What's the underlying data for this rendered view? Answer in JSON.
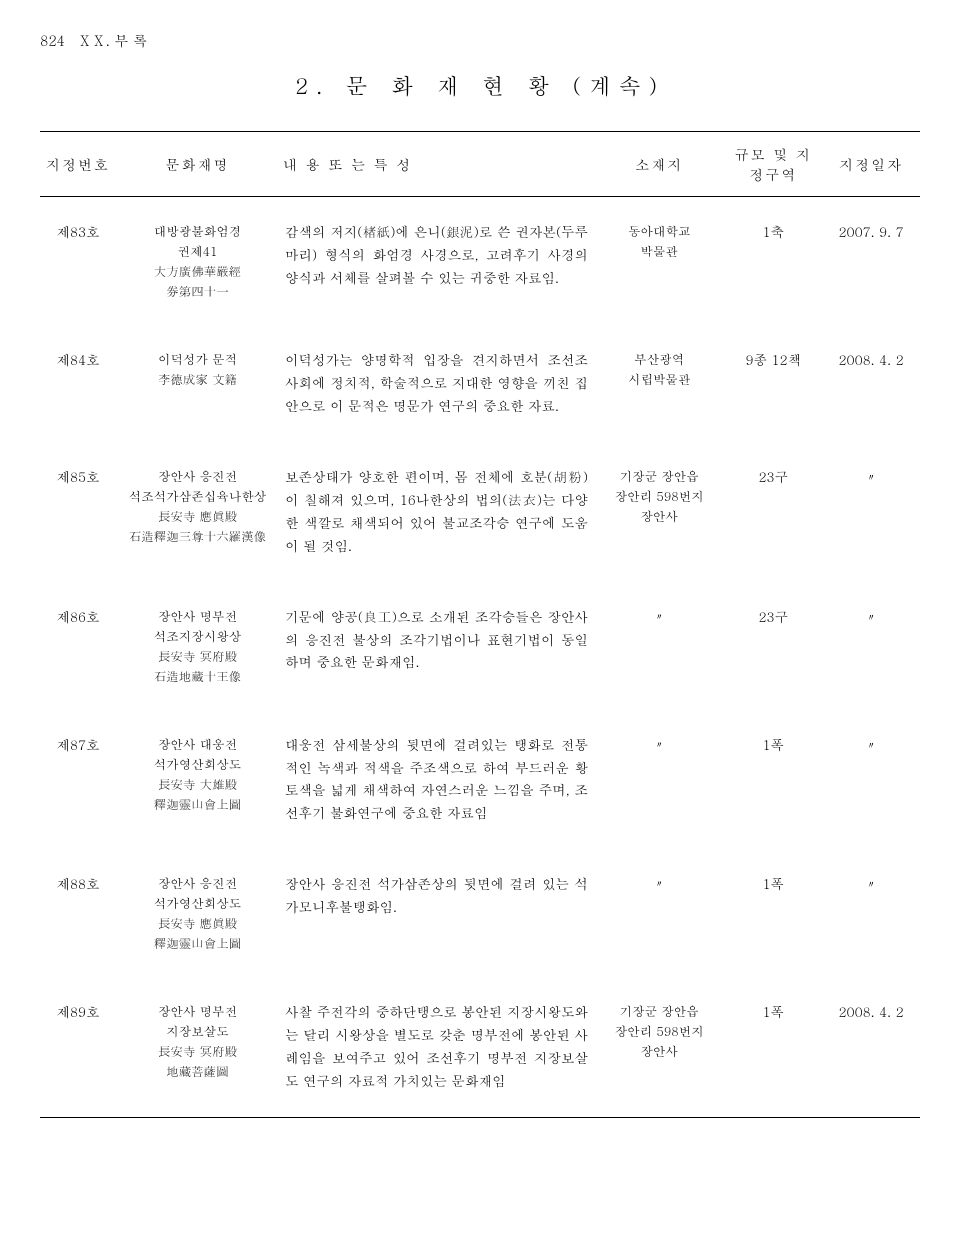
{
  "header": {
    "page_number": "824",
    "section": "ⅩⅩ. 부     록"
  },
  "title": "2.  문  화  재  현  황 (계속)",
  "columns": {
    "id": "지정번호",
    "name": "문화재명",
    "desc": "내 용 또 는 특 성",
    "location": "소재지",
    "scale": "규모 및 지정구역",
    "date": "지정일자"
  },
  "rows": [
    {
      "id": "제83호",
      "name_lines": [
        "대방광불화엄경",
        "권제41",
        "大方廣佛華嚴經",
        "券第四十一"
      ],
      "desc": "감색의 저지(楮紙)에 은니(銀泥)로 쓴 권자본(두루마리) 형식의 화엄경 사경으로, 고려후기 사경의 양식과 서체를 살펴볼 수 있는 귀중한 자료임.",
      "location_lines": [
        "동아대학교",
        "박물관"
      ],
      "scale": "1축",
      "date": "2007. 9. 7"
    },
    {
      "id": "제84호",
      "name_lines": [
        "이덕성가 문적",
        "李德成家 文籍"
      ],
      "desc": "이덕성가는 양명학적 입장을 견지하면서 조선조 사회에 정치적, 학술적으로 지대한 영향을 끼친 집안으로 이 문적은 명문가 연구의 중요한 자료.",
      "location_lines": [
        "부산광역",
        "시립박물관"
      ],
      "scale": "9종 12책",
      "date": "2008. 4. 2"
    },
    {
      "id": "제85호",
      "name_lines": [
        "장안사 응진전",
        "석조석가삼존십육나한상",
        "長安寺 應眞殿",
        "石造釋迦三尊十六羅漢像"
      ],
      "desc": "보존상태가 양호한 편이며, 몸 전체에 호분(胡粉)이 칠해져 있으며, 16나한상의 법의(法衣)는 다양한 색깔로 채색되어 있어 불교조각승 연구에 도움이 될 것임.",
      "location_lines": [
        "기장군 장안읍",
        "장안리 598번지",
        "장안사"
      ],
      "scale": "23구",
      "date": "〃"
    },
    {
      "id": "제86호",
      "name_lines": [
        "장안사 명부전",
        "석조지장시왕상",
        "長安寺 冥府殿",
        "石造地藏十王像"
      ],
      "desc": "기문에 양공(良工)으로 소개된 조각승들은 장안사의 응진전 불상의 조각기법이나 표현기법이 동일하며 중요한 문화재임.",
      "location_lines": [
        "〃"
      ],
      "scale": "23구",
      "date": "〃"
    },
    {
      "id": "제87호",
      "name_lines": [
        "장안사 대웅전",
        "석가영산회상도",
        "長安寺 大雄殿",
        "釋迦靈山會上圖"
      ],
      "desc": "대웅전 삼세불상의 뒷면에 걸려있는 탱화로 전통적인 녹색과 적색을 주조색으로 하여 부드러운 황토색을 넓게 채색하여 자연스러운 느낌을 주며, 조선후기 불화연구에 중요한 자료임",
      "location_lines": [
        "〃"
      ],
      "scale": "1폭",
      "date": "〃"
    },
    {
      "id": "제88호",
      "name_lines": [
        "장안사 응진전",
        "석가영산회상도",
        "長安寺 應眞殿",
        "釋迦靈山會上圖"
      ],
      "desc": "장안사 응진전 석가삼존상의 뒷면에 걸려 있는 석가모니후불탱화임.",
      "location_lines": [
        "〃"
      ],
      "scale": "1폭",
      "date": "〃"
    },
    {
      "id": "제89호",
      "name_lines": [
        "장안사 명부전",
        "지장보살도",
        "長安寺 冥府殿",
        "地藏菩薩圖"
      ],
      "desc": "사찰 주전각의 중하단탱으로 봉안된 지장시왕도와는 달리 시왕상을 별도로 갖춘 명부전에 봉안된 사례임을 보여주고 있어 조선후기 명부전 지장보살도 연구의 자료적 가치있는 문화재임",
      "location_lines": [
        "기장군 장안읍",
        "장안리 598번지",
        "장안사"
      ],
      "scale": "1폭",
      "date": "2008. 4. 2"
    }
  ]
}
